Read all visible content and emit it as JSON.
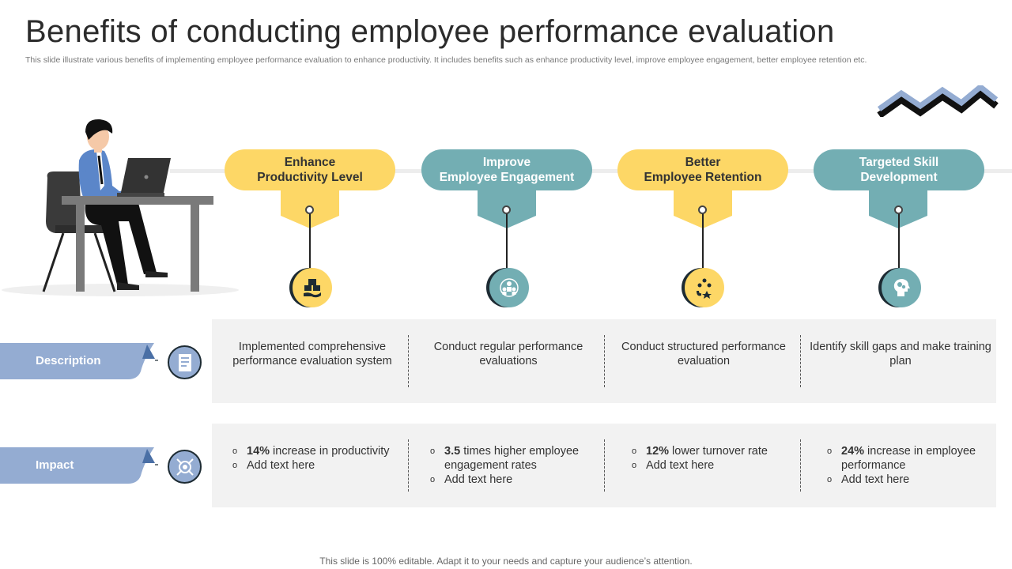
{
  "page": {
    "title": "Benefits of conducting employee performance evaluation",
    "subtitle": "This slide illustrate various benefits of implementing employee performance evaluation to enhance productivity. It includes benefits such as enhance productivity level, improve employee engagement, better employee retention etc.",
    "footer": "This slide is 100% editable. Adapt it to your needs and capture your audience’s attention."
  },
  "colors": {
    "yellow": "#fdd766",
    "teal": "#73aeb3",
    "blue_label": "#94acd2",
    "panel_bg": "#f2f2f2",
    "dark": "#1d2b33"
  },
  "rows": {
    "description_label": "Description",
    "impact_label": "Impact",
    "description_icon": "document-icon",
    "impact_icon": "target-icon"
  },
  "benefits": [
    {
      "title": "Enhance\nProductivity Level",
      "color": "yellow",
      "icon": "hand-boxes-icon",
      "description": "Implemented comprehensive performance evaluation system",
      "impact": [
        {
          "bold": "14%",
          "text": " increase in productivity"
        },
        {
          "bold": "",
          "text": "Add text here"
        }
      ]
    },
    {
      "title": "Improve\nEmployee Engagement",
      "color": "teal",
      "icon": "team-network-icon",
      "description": "Conduct regular performance evaluations",
      "impact": [
        {
          "bold": "3.5",
          "text": " times higher employee engagement rates"
        },
        {
          "bold": "",
          "text": "Add text here"
        }
      ]
    },
    {
      "title": "Better\nEmployee Retention",
      "color": "yellow",
      "icon": "magnet-people-icon",
      "description": "Conduct structured performance evaluation",
      "impact": [
        {
          "bold": "12%",
          "text": " lower turnover rate"
        },
        {
          "bold": "",
          "text": "Add text here"
        }
      ]
    },
    {
      "title": "Targeted Skill\nDevelopment",
      "color": "teal",
      "icon": "head-gears-icon",
      "description": "Identify skill gaps and make training plan",
      "impact": [
        {
          "bold": "24%",
          "text": " increase in employee performance"
        },
        {
          "bold": "",
          "text": "Add text here"
        }
      ]
    }
  ]
}
